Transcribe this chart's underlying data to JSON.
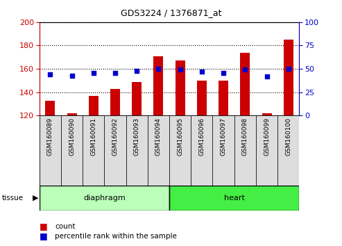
{
  "title": "GDS3224 / 1376871_at",
  "samples": [
    "GSM160089",
    "GSM160090",
    "GSM160091",
    "GSM160092",
    "GSM160093",
    "GSM160094",
    "GSM160095",
    "GSM160096",
    "GSM160097",
    "GSM160098",
    "GSM160099",
    "GSM160100"
  ],
  "counts": [
    133,
    122,
    137,
    143,
    149,
    171,
    167,
    150,
    150,
    174,
    122,
    185
  ],
  "percentiles": [
    44,
    43,
    46,
    46,
    48,
    50,
    49,
    47,
    46,
    49,
    42,
    50
  ],
  "ylim_left": [
    120,
    200
  ],
  "ylim_right": [
    0,
    100
  ],
  "yticks_left": [
    120,
    140,
    160,
    180,
    200
  ],
  "yticks_right": [
    0,
    25,
    50,
    75,
    100
  ],
  "groups": [
    {
      "label": "diaphragm",
      "start": 0,
      "end": 6,
      "color": "#bbffbb"
    },
    {
      "label": "heart",
      "start": 6,
      "end": 12,
      "color": "#44ee44"
    }
  ],
  "bar_color": "#cc0000",
  "dot_color": "#0000cc",
  "left_axis_color": "#cc0000",
  "right_axis_color": "#0000cc",
  "tissue_label": "tissue",
  "legend_count_label": "count",
  "legend_pct_label": "percentile rank within the sample",
  "tick_label_bg": "#dddddd",
  "bar_bottom": 120,
  "bar_width": 0.45,
  "dot_marker_size": 25
}
